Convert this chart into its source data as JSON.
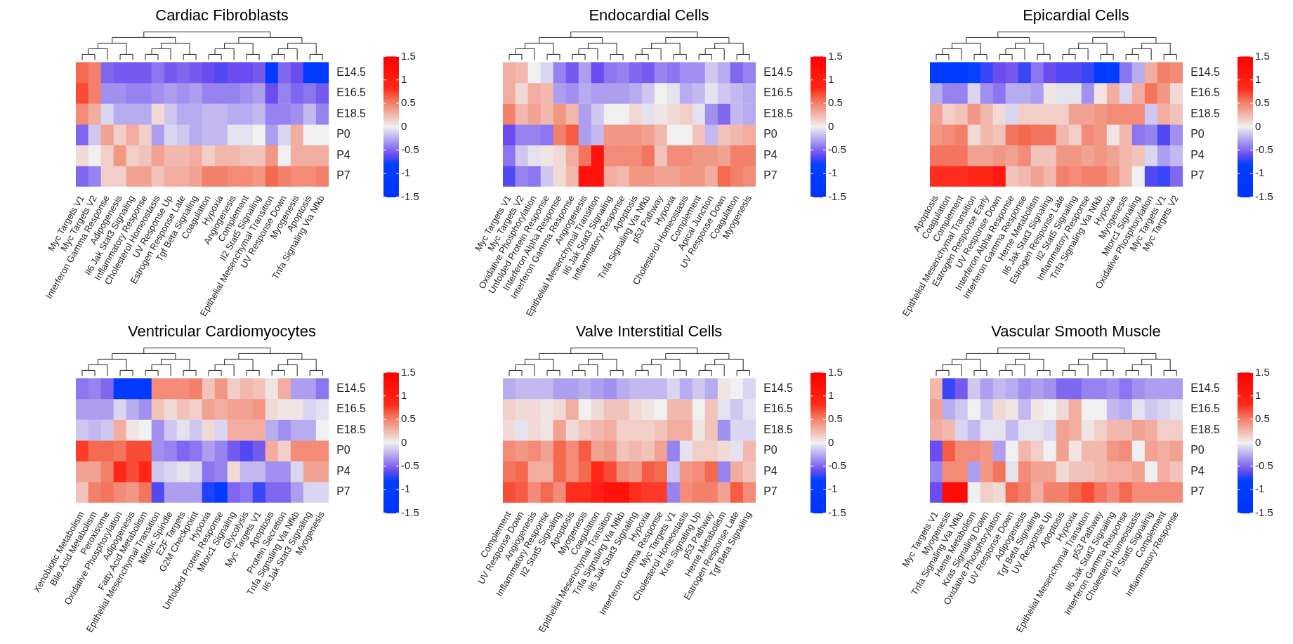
{
  "chart_data": [
    {
      "type": "heatmap",
      "title": "Cardiac Fibroblasts",
      "categories": [
        "Myc Targets V1",
        "Myc Targets V2",
        "Interferon Gamma Response",
        "Adipogenesis",
        "Il6 Jak Stat3 Signaling",
        "Inflammatory Response",
        "Cholesterol Homeostasis",
        "UV Response Up",
        "Estrogen Response Late",
        "Tgf Beta Signaling",
        "Coagulation",
        "Hypoxia",
        "Angiogenesis",
        "Complement",
        "Il2 Stat5 Signaling",
        "Epithelial Mesenchymal Transition",
        "UV Response Down",
        "Myogenesis",
        "Apoptosis",
        "Tnfa Signaling Via Nfkb"
      ],
      "y_categories": [
        "E14.5",
        "E16.5",
        "E18.5",
        "P0",
        "P4",
        "P7"
      ],
      "cells": [
        [
          0.6,
          0.5,
          -0.5,
          -0.55,
          -0.55,
          -0.55,
          -0.45,
          -0.55,
          -0.5,
          -0.55,
          -0.6,
          -0.65,
          -0.6,
          -0.6,
          -0.55,
          -1.2,
          -0.5,
          -0.6,
          -1.2,
          -1.2
        ],
        [
          0.7,
          0.5,
          -0.35,
          -0.35,
          -0.4,
          -0.4,
          -0.35,
          -0.3,
          -0.35,
          -0.3,
          -0.4,
          -0.4,
          -0.4,
          -0.35,
          -0.3,
          -0.6,
          -0.4,
          -0.5,
          -0.45,
          -0.55
        ],
        [
          0.45,
          0.3,
          -0.1,
          -0.25,
          -0.25,
          -0.25,
          0.1,
          -0.15,
          -0.25,
          -0.25,
          -0.2,
          -0.2,
          -0.25,
          -0.25,
          -0.2,
          -0.4,
          -0.4,
          -0.35,
          -0.2,
          -0.4
        ],
        [
          -0.5,
          -0.15,
          0.35,
          0.15,
          0.3,
          0.15,
          -0.3,
          -0.1,
          -0.15,
          -0.25,
          -0.2,
          -0.2,
          -0.05,
          -0.05,
          0,
          -0.3,
          -0.1,
          0.3,
          0,
          0
        ],
        [
          0.1,
          0,
          0.15,
          0.4,
          0.15,
          0.2,
          0.35,
          0.25,
          0.25,
          0.3,
          0.15,
          0.25,
          0.25,
          0.2,
          0.2,
          0.4,
          0,
          0.3,
          0.3,
          0.3
        ],
        [
          -0.5,
          -0.4,
          0.15,
          0.15,
          0.35,
          0.35,
          0.2,
          0.3,
          0.3,
          0.35,
          0.5,
          0.5,
          0.45,
          0.45,
          0.4,
          0.6,
          0.5,
          0.45,
          0.45,
          0.5
        ]
      ],
      "clim": [
        -1.5,
        1.5
      ],
      "cticks": [
        1.5,
        1,
        0.5,
        0,
        -0.5,
        -1,
        -1.5
      ]
    },
    {
      "type": "heatmap",
      "title": "Endocardial Cells",
      "categories": [
        "Myc Targets V1",
        "Myc Targets V2",
        "Oxidative Phosphorylation",
        "Unfolded Protein Response",
        "Interferon Alpha Response",
        "Interferon Gamma Response",
        "Angiogenesis",
        "Epithelial Mesenchymal Transition",
        "Il6 Jak Stat3 Signaling",
        "Inflammatory Response",
        "Apoptosis",
        "Tnfa Signaling Via Nfkb",
        "p53 Pathway",
        "Hypoxia",
        "Cholesterol Homeostasis",
        "Complement",
        "Apical Junction",
        "UV Response Down",
        "Coagulation",
        "Myogenesis"
      ],
      "y_categories": [
        "E14.5",
        "E16.5",
        "E18.5",
        "P0",
        "P4",
        "P7"
      ],
      "cells": [
        [
          0.3,
          0.25,
          0,
          -0.1,
          -0.4,
          -0.55,
          -0.3,
          -0.6,
          -0.45,
          -0.4,
          -0.5,
          -0.55,
          -0.4,
          -0.45,
          -0.35,
          -0.35,
          -0.15,
          -0.25,
          -0.5,
          -0.4
        ],
        [
          0.3,
          0.1,
          0.3,
          0.25,
          -0.3,
          -0.35,
          -0.25,
          -0.3,
          -0.3,
          -0.3,
          -0.25,
          -0.15,
          0,
          -0.05,
          -0.25,
          -0.2,
          -0.05,
          -0.15,
          -0.2,
          -0.25
        ],
        [
          0.5,
          0.25,
          0.35,
          0.25,
          0.4,
          0.25,
          -0.3,
          -0.15,
          0,
          0,
          0.1,
          -0.05,
          0.05,
          0.1,
          0.15,
          -0.05,
          -0.35,
          -0.5,
          -0.2,
          -0.25
        ],
        [
          -0.6,
          -0.4,
          -0.4,
          -0.45,
          0.5,
          0.65,
          -0.3,
          -0.2,
          0.4,
          0.4,
          0.4,
          0.35,
          0.25,
          0,
          0,
          0.2,
          -0.2,
          0.2,
          0.25,
          0.3
        ],
        [
          -0.45,
          -0.15,
          -0.05,
          0.05,
          0.1,
          0.3,
          0.55,
          1.2,
          0.45,
          0.45,
          0.45,
          0.55,
          0.2,
          0.45,
          0.45,
          0.4,
          0.4,
          0.35,
          0.5,
          0.5
        ],
        [
          -0.65,
          -0.4,
          -0.45,
          -0.15,
          0.1,
          0.25,
          1.2,
          1.2,
          0.3,
          0.25,
          0.4,
          0.4,
          0.35,
          0.35,
          0.4,
          0.4,
          0.3,
          0.6,
          0.5,
          0.45
        ]
      ],
      "clim": [
        -1.5,
        1.5
      ],
      "cticks": [
        1.5,
        1,
        0.5,
        0,
        -0.5,
        -1,
        -1.5
      ]
    },
    {
      "type": "heatmap",
      "title": "Epicardial Cells",
      "categories": [
        "Apoptosis",
        "Coagulation",
        "Complement",
        "Epithelial Mesenchymal Transition",
        "Estrogen Response Early",
        "UV Response Down",
        "Interferon Alpha Response",
        "Interferon Gamma Response",
        "Heme Metabolism",
        "Il6 Jak Stat3 Signaling",
        "Estrogen Response Late",
        "Il2 Stat5 Signaling",
        "Inflammatory Response",
        "Tnfa Signaling Via Nfkb",
        "Hypoxia",
        "Myogenesis",
        "Mtorc1 Signaling",
        "Oxidative Phosphorylation",
        "Myc Targets V1",
        "Myc Targets V2"
      ],
      "y_categories": [
        "E14.5",
        "E16.5",
        "E18.5",
        "P0",
        "P4",
        "P7"
      ],
      "cells": [
        [
          -1.2,
          -1.1,
          -1.2,
          -0.8,
          -0.7,
          -0.6,
          -0.55,
          -0.7,
          -0.45,
          -0.6,
          -0.65,
          -0.65,
          -0.7,
          -1.2,
          -0.85,
          -0.45,
          -0.25,
          0.3,
          0.5,
          0.45
        ],
        [
          -0.25,
          -0.4,
          -0.4,
          -0.1,
          -0.35,
          -0.45,
          -0.25,
          -0.25,
          -0.3,
          0.05,
          -0.05,
          -0.05,
          -0.35,
          0.05,
          0.3,
          -0.1,
          0.3,
          0.55,
          0.4,
          0.1
        ],
        [
          0.35,
          0.15,
          0.2,
          0.4,
          0.25,
          0.1,
          -0.1,
          0.15,
          0.15,
          0.15,
          0.15,
          0.35,
          0.35,
          0.4,
          0.45,
          0.45,
          0.45,
          -0.15,
          0.3,
          0.2
        ],
        [
          0.4,
          0.45,
          0.5,
          0.1,
          0.25,
          0.2,
          0.55,
          0.6,
          0.55,
          0.55,
          0.25,
          0.15,
          0.45,
          0.4,
          0.05,
          0.25,
          -0.45,
          -0.4,
          -0.65,
          -0.35
        ],
        [
          0.55,
          0.55,
          0.55,
          0.35,
          0.35,
          0.4,
          0.35,
          0.45,
          0.2,
          0.2,
          0.4,
          0.4,
          0.35,
          0.4,
          0.35,
          0.25,
          0.2,
          -0.1,
          -0.3,
          -0.2
        ],
        [
          0.8,
          0.8,
          0.8,
          0.9,
          0.9,
          1.1,
          0.2,
          0.25,
          0.35,
          0.25,
          0.5,
          0.45,
          0.5,
          0.5,
          0.4,
          0.25,
          0,
          -0.65,
          -0.7,
          -0.5
        ]
      ],
      "clim": [
        -1.5,
        1.5
      ],
      "cticks": [
        1.5,
        1,
        0.5,
        0,
        -0.5,
        -1,
        -1.5
      ]
    },
    {
      "type": "heatmap",
      "title": "Ventricular Cardiomyocytes",
      "categories": [
        "Xenobiotic Metabolism",
        "Bile Acid Metabolism",
        "Peroxisome",
        "Oxidative Phosphorylation",
        "Adipogenesis",
        "Fatty Acid Metabolism",
        "Epithelial Mesenchymal Transition",
        "Mitotic Spindle",
        "E2F Targets",
        "G2M Checkpoint",
        "Hypoxia",
        "Unfolded Protein Response",
        "Mtorc1 Signaling",
        "Glycolysis",
        "Myc Targets V1",
        "Apoptosis",
        "Protein Secretion",
        "Tnfa Signaling Via Nfkb",
        "Il6 Jak Stat3 Signaling",
        "Myogenesis"
      ],
      "y_categories": [
        "E14.5",
        "E16.5",
        "E18.5",
        "P0",
        "P4",
        "P7"
      ],
      "cells": [
        [
          -0.45,
          -0.4,
          -0.5,
          -1.2,
          -1.2,
          -1.2,
          0.45,
          0.45,
          0.45,
          0.5,
          0.2,
          0.4,
          0.15,
          0.25,
          0.2,
          0.05,
          0.3,
          -0.3,
          -0.3,
          -0.45
        ],
        [
          -0.3,
          -0.3,
          -0.3,
          -0.1,
          -0.25,
          -0.35,
          0.2,
          0.1,
          0.2,
          0.15,
          0.35,
          0.3,
          0.35,
          0.35,
          0.4,
          0.1,
          0.05,
          0.05,
          -0.1,
          -0.05
        ],
        [
          -0.15,
          -0.2,
          -0.15,
          0.3,
          0.05,
          0,
          -0.35,
          -0.15,
          -0.05,
          -0.15,
          0.1,
          -0.1,
          0.3,
          0.3,
          0.3,
          -0.25,
          -0.35,
          -0.25,
          -0.25,
          0
        ],
        [
          0.75,
          0.6,
          0.6,
          0.55,
          0.7,
          0.7,
          -0.35,
          -0.4,
          -0.5,
          -0.45,
          -0.3,
          -0.4,
          -0.55,
          -0.65,
          -0.55,
          0.3,
          0.15,
          0.45,
          0.45,
          0.45
        ],
        [
          0.35,
          0.35,
          0.5,
          0.9,
          0.7,
          0.9,
          -0.15,
          -0.1,
          -0.05,
          -0.1,
          -0.45,
          -0.4,
          0.1,
          -0.2,
          -0.2,
          -0.35,
          -0.35,
          -0.1,
          0.35,
          0.35
        ],
        [
          0.2,
          0.5,
          0.55,
          0.45,
          0.4,
          0.55,
          -0.65,
          -0.3,
          -0.3,
          -0.3,
          -0.75,
          -1.1,
          -0.5,
          -0.45,
          -0.7,
          -0.5,
          -0.5,
          -0.3,
          -0.1,
          -0.1
        ]
      ],
      "clim": [
        -1.5,
        1.5
      ],
      "cticks": [
        1.5,
        1,
        0.5,
        0,
        -0.5,
        -1,
        -1.5
      ]
    },
    {
      "type": "heatmap",
      "title": "Valve Interstitial Cells",
      "categories": [
        "Complement",
        "UV Response Down",
        "Angiogenesis",
        "Inflammatory Response",
        "Il2 Stat5 Signaling",
        "Apoptosis",
        "Myogenesis",
        "Coagulation",
        "Epithelial Mesenchymal Transition",
        "Tnfa Signaling Via Nfkb",
        "Il6 Jak Stat3 Signaling",
        "Hypoxia",
        "Interferon Gamma Response",
        "Myc Targets V1",
        "Cholesterol Homeostasis",
        "Kras Signaling Up",
        "p53 Pathway",
        "Heme Metabolism",
        "Estrogen Response Late",
        "Tgf Beta Signaling"
      ],
      "y_categories": [
        "E14.5",
        "E16.5",
        "E18.5",
        "P0",
        "P4",
        "P7"
      ],
      "cells": [
        [
          -0.25,
          -0.2,
          -0.2,
          -0.2,
          -0.3,
          -0.3,
          -0.25,
          -0.3,
          -0.35,
          -0.25,
          -0.2,
          -0.2,
          -0.2,
          -0.1,
          -0.25,
          -0.15,
          -0.25,
          0.05,
          0,
          -0.1
        ],
        [
          0.15,
          0.1,
          0.1,
          0.05,
          0.1,
          0.3,
          0,
          0.1,
          0.2,
          0.2,
          0.1,
          0.05,
          0,
          0.25,
          0.25,
          0,
          0.2,
          -0.05,
          -0.15,
          -0.05
        ],
        [
          0.1,
          -0.05,
          0.1,
          0.05,
          0.35,
          0.1,
          0.2,
          0.25,
          0.3,
          0.15,
          0.15,
          0.15,
          0.2,
          0.3,
          0.3,
          0.05,
          0.2,
          -0.35,
          -0.1,
          -0.1
        ],
        [
          0.45,
          0.4,
          0.45,
          0.35,
          0.6,
          0.45,
          0.65,
          0.35,
          0.4,
          0.2,
          0.25,
          0.2,
          0.35,
          -0.4,
          -0.05,
          0.15,
          0.15,
          0.1,
          -0.05,
          0.25
        ],
        [
          0.55,
          0.6,
          0.3,
          0.3,
          0.6,
          0.45,
          0.6,
          0.85,
          0.7,
          0.45,
          0.4,
          0.65,
          0.6,
          -0.15,
          0.4,
          0.45,
          0.6,
          -0.4,
          0.3,
          0.2
        ],
        [
          0.7,
          0.65,
          0.45,
          0.6,
          0.45,
          0.8,
          0.8,
          1,
          1.2,
          1.2,
          0.8,
          0.75,
          0.75,
          -0.4,
          0.45,
          0.5,
          0.5,
          0.35,
          0.65,
          0.45
        ]
      ],
      "clim": [
        -1.5,
        1.5
      ],
      "cticks": [
        1.5,
        1,
        0.5,
        0,
        -0.5,
        -1,
        -1.5
      ]
    },
    {
      "type": "heatmap",
      "title": "Vascular Smooth Muscle",
      "categories": [
        "Myc Targets V1",
        "Myogenesis",
        "Tnfa Signaling Via Nfkb",
        "Heme Metabolism",
        "Kras Signaling Down",
        "Oxidative Phosphorylation",
        "UV Response Down",
        "Adipogenesis",
        "Tgf Beta Signaling",
        "UV Response Up",
        "Apoptosis",
        "Hypoxia",
        "Epithelial Mesenchymal Transition",
        "p53 Pathway",
        "Il6 Jak Stat3 Signaling",
        "Interferon Gamma Response",
        "Cholesterol Homeostasis",
        "Il2 Stat5 Signaling",
        "Complement",
        "Inflammatory Response"
      ],
      "y_categories": [
        "E14.5",
        "E16.5",
        "E18.5",
        "P0",
        "P4",
        "P7"
      ],
      "cells": [
        [
          0.25,
          -0.7,
          -0.55,
          -0.15,
          -0.3,
          -0.2,
          -0.25,
          -0.35,
          -0.3,
          -0.35,
          -0.5,
          -0.5,
          -0.4,
          -0.4,
          -0.35,
          -0.45,
          -0.35,
          -0.3,
          -0.3,
          -0.3
        ],
        [
          0.35,
          -0.25,
          -0.15,
          0,
          -0.15,
          0.1,
          0.05,
          -0.2,
          0.05,
          0,
          0.1,
          0.3,
          0,
          0,
          -0.2,
          -0.25,
          -0.05,
          -0.15,
          -0.1,
          -0.05
        ],
        [
          0.3,
          0.25,
          -0.1,
          -0.2,
          -0.05,
          -0.05,
          -0.2,
          -0.05,
          -0.05,
          -0.1,
          0.35,
          0.3,
          0.05,
          0.15,
          0.25,
          0.25,
          0.35,
          0.3,
          0.15,
          0.15
        ],
        [
          -0.6,
          0.65,
          0.45,
          0.45,
          0.4,
          -0.3,
          0,
          0.25,
          0.15,
          0,
          0.35,
          0.05,
          0.25,
          0.25,
          0.4,
          0.45,
          0,
          0.35,
          0.3,
          0.35
        ],
        [
          -0.4,
          0.45,
          0.45,
          -0.3,
          0.4,
          0.55,
          -0.05,
          0.45,
          0.35,
          0.35,
          0.1,
          0.2,
          0.2,
          0.25,
          0.3,
          0.3,
          0.35,
          0,
          0.3,
          0.2
        ],
        [
          -0.6,
          1.3,
          1.3,
          0,
          0.15,
          0.1,
          0.6,
          0.5,
          0.3,
          0.5,
          0.5,
          0.6,
          0.7,
          0.55,
          0.45,
          0.6,
          0.45,
          0.45,
          0.45,
          0.45
        ]
      ],
      "clim": [
        -1.5,
        1.5
      ],
      "cticks": [
        1.5,
        1,
        0.5,
        0,
        -0.5,
        -1,
        -1.5
      ]
    }
  ]
}
